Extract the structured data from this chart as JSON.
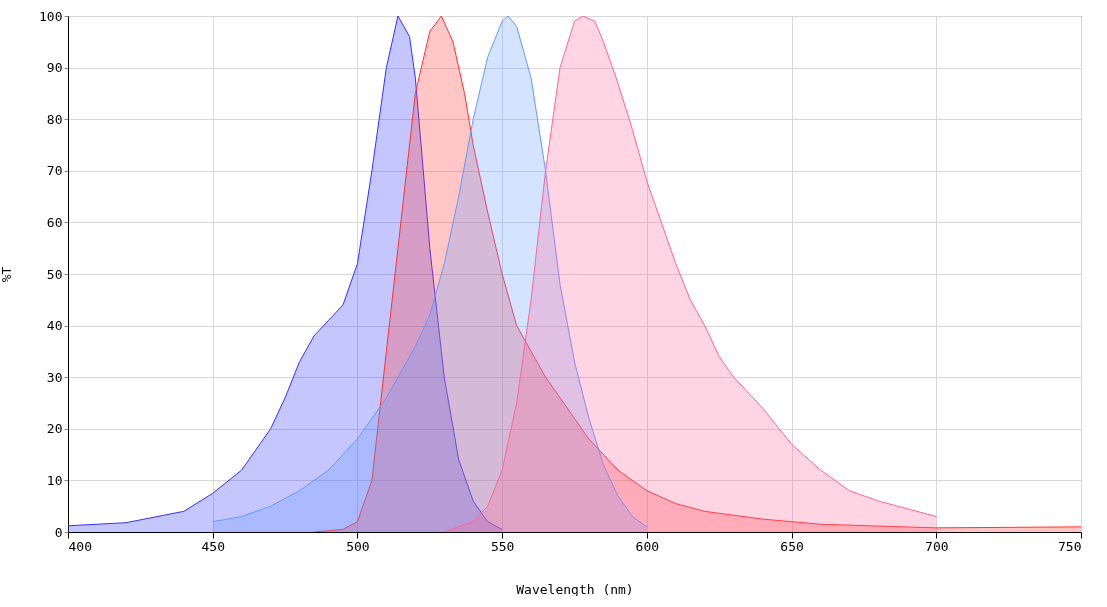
{
  "chart_data": {
    "type": "area",
    "xlabel": "Wavelength (nm)",
    "ylabel": "%T",
    "xlim": [
      400,
      750
    ],
    "ylim": [
      0,
      100
    ],
    "xticks": [
      400,
      450,
      500,
      550,
      600,
      650,
      700,
      750
    ],
    "yticks": [
      0,
      10,
      20,
      30,
      40,
      50,
      60,
      70,
      80,
      90,
      100
    ],
    "grid": true,
    "legend": false,
    "series": [
      {
        "color": "#3333ff",
        "x": [
          400,
          420,
          440,
          450,
          460,
          470,
          475,
          480,
          485,
          490,
          495,
          500,
          505,
          510,
          514,
          518,
          520,
          522,
          525,
          530,
          535,
          540,
          545,
          550
        ],
        "values": [
          1.2,
          1.8,
          4,
          7.5,
          12,
          20,
          26,
          33,
          38,
          41,
          44,
          52,
          70,
          90,
          100,
          96,
          88,
          75,
          55,
          30,
          14,
          6,
          2,
          0.5
        ]
      },
      {
        "color": "#ff3333",
        "x": [
          485,
          495,
          500,
          505,
          510,
          515,
          520,
          525,
          529,
          533,
          537,
          540,
          545,
          550,
          555,
          560,
          565,
          570,
          575,
          580,
          590,
          600,
          610,
          620,
          640,
          660,
          700,
          750
        ],
        "values": [
          0,
          0.5,
          2,
          10,
          35,
          60,
          85,
          97,
          100,
          95,
          85,
          75,
          62,
          50,
          40,
          35,
          30,
          26,
          22,
          18,
          12,
          8,
          5.5,
          4,
          2.5,
          1.5,
          0.8,
          1
        ]
      },
      {
        "color": "#6699ff",
        "x": [
          450,
          460,
          470,
          480,
          490,
          500,
          510,
          520,
          525,
          530,
          535,
          540,
          545,
          550,
          552,
          555,
          560,
          565,
          570,
          575,
          580,
          585,
          590,
          595,
          600
        ],
        "values": [
          2,
          3,
          5,
          8,
          12,
          18,
          26,
          36,
          42,
          52,
          65,
          80,
          92,
          99,
          100,
          98,
          88,
          70,
          48,
          33,
          22,
          13,
          7,
          3,
          1
        ]
      },
      {
        "color": "#ff6699",
        "x": [
          530,
          540,
          545,
          550,
          555,
          560,
          565,
          570,
          575,
          578,
          582,
          585,
          590,
          595,
          600,
          605,
          610,
          615,
          620,
          625,
          630,
          640,
          650,
          660,
          670,
          680,
          690,
          700
        ],
        "values": [
          0,
          2,
          5,
          12,
          25,
          45,
          70,
          90,
          99,
          100,
          99,
          95,
          87,
          78,
          68,
          60,
          52,
          45,
          40,
          34,
          30,
          24,
          17,
          12,
          8,
          6,
          4.5,
          3
        ]
      }
    ]
  }
}
